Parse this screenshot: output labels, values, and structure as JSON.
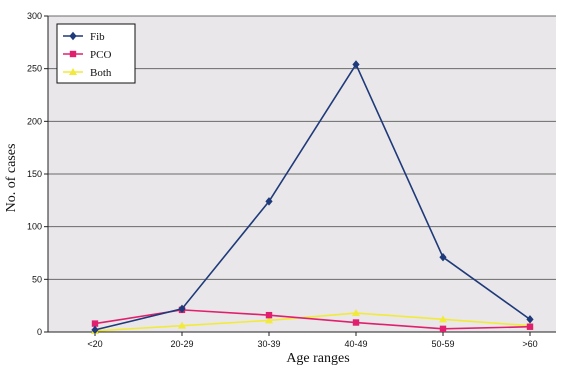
{
  "chart_data": {
    "type": "line",
    "title": "",
    "xlabel": "Age ranges",
    "ylabel": "No. of cases",
    "categories": [
      "<20",
      "20-29",
      "30-39",
      "40-49",
      "50-59",
      ">60"
    ],
    "ylim": [
      0,
      300
    ],
    "yticks": [
      0,
      50,
      100,
      150,
      200,
      250,
      300
    ],
    "grid": "horizontal",
    "legend_position": "top-left",
    "series": [
      {
        "name": "Fib",
        "color": "#1f3a7a",
        "marker": "diamond",
        "values": [
          2,
          22,
          124,
          254,
          71,
          12
        ]
      },
      {
        "name": "PCO",
        "color": "#e0206e",
        "marker": "square",
        "values": [
          8,
          21,
          16,
          9,
          3,
          5
        ]
      },
      {
        "name": "Both",
        "color": "#f2ea3a",
        "marker": "triangle",
        "values": [
          1,
          6,
          11,
          18,
          12,
          6
        ]
      }
    ]
  },
  "colors": {
    "plot_background": "#e9e7e9",
    "gridline": "#6b6b6b",
    "axis": "#222222"
  }
}
